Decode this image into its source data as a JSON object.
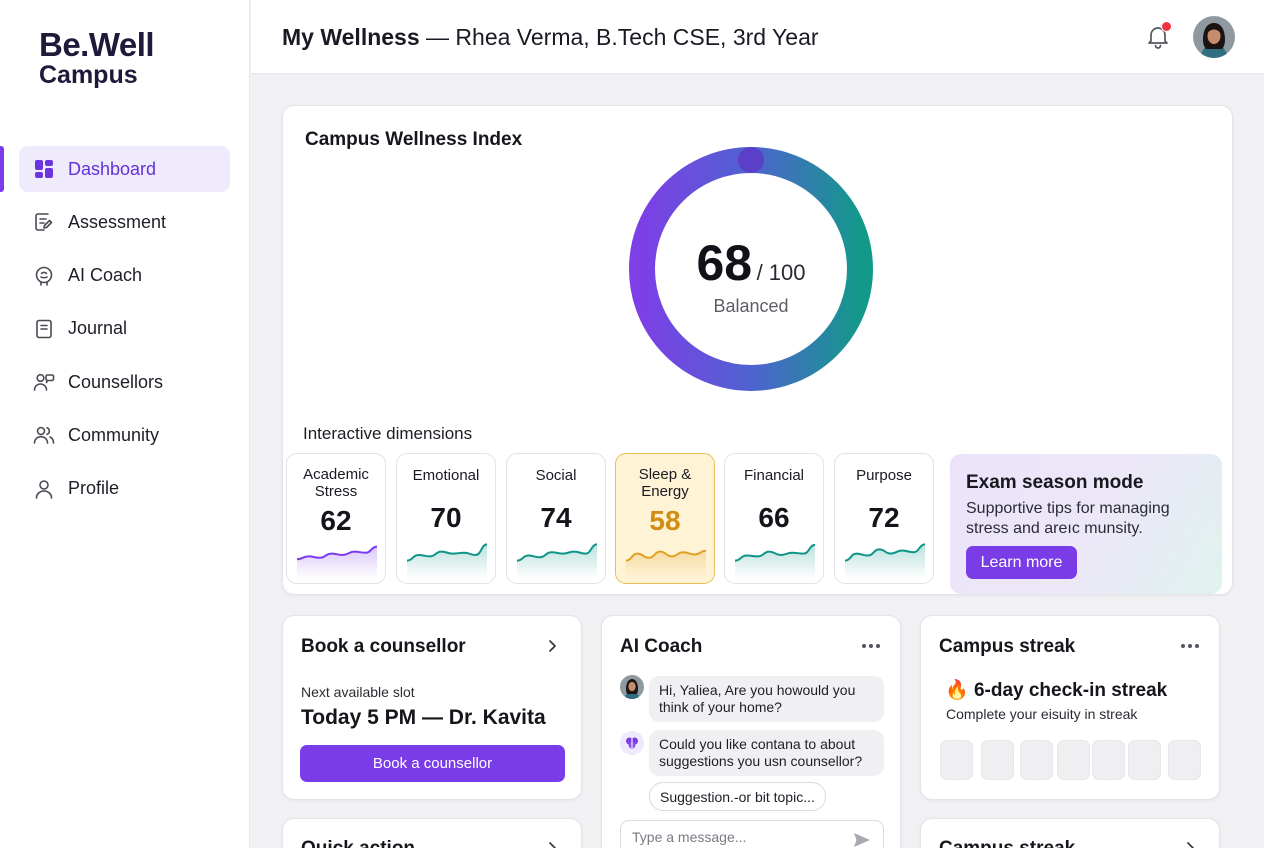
{
  "brand": {
    "line1": "Be.Well",
    "line2": "Campus"
  },
  "sidebar": {
    "items": [
      {
        "label": "Dashboard",
        "icon": "dashboard-icon",
        "active": true
      },
      {
        "label": "Assessment",
        "icon": "assessment-icon"
      },
      {
        "label": "AI Coach",
        "icon": "brain-icon"
      },
      {
        "label": "Journal",
        "icon": "journal-icon"
      },
      {
        "label": "Counsellors",
        "icon": "counsellors-icon"
      },
      {
        "label": "Community",
        "icon": "community-icon"
      },
      {
        "label": "Profile",
        "icon": "profile-icon"
      }
    ]
  },
  "header": {
    "title_bold": "My Wellness",
    "title_rest": " — Rhea Verma, B.Tech CSE, 3rd Year",
    "has_notification": true
  },
  "wellness_index": {
    "title": "Campus Wellness Index",
    "score": "68",
    "max": "/ 100",
    "score_fraction": 0.68,
    "label": "Balanced",
    "dimensions_title": "Interactive dimensions",
    "dimensions": [
      {
        "name": "Academic Stress",
        "value": "62",
        "trend": [
          0.35,
          0.45,
          0.4,
          0.55,
          0.5,
          0.62,
          0.58,
          0.8
        ],
        "color": "#7c3aed"
      },
      {
        "name": "Emotional",
        "value": "70",
        "trend": [
          0.3,
          0.5,
          0.45,
          0.62,
          0.55,
          0.58,
          0.5,
          0.88
        ],
        "color": "#0f9488"
      },
      {
        "name": "Social",
        "value": "74",
        "trend": [
          0.3,
          0.48,
          0.42,
          0.6,
          0.55,
          0.62,
          0.55,
          0.88
        ],
        "color": "#0f9488"
      },
      {
        "name": "Sleep & Energy",
        "value": "58",
        "trend": [
          0.3,
          0.55,
          0.4,
          0.62,
          0.45,
          0.6,
          0.52,
          0.65
        ],
        "color": "#e0a125",
        "highlight": true
      },
      {
        "name": "Financial",
        "value": "66",
        "trend": [
          0.3,
          0.48,
          0.45,
          0.62,
          0.5,
          0.58,
          0.55,
          0.86
        ],
        "color": "#0f9488"
      },
      {
        "name": "Purpose",
        "value": "72",
        "trend": [
          0.3,
          0.55,
          0.48,
          0.7,
          0.55,
          0.66,
          0.6,
          0.88
        ],
        "color": "#0f9488"
      }
    ],
    "exam_mode": {
      "title": "Exam season mode",
      "description": "Supportive tips for managing stress and areıc munsity.",
      "button": "Learn more"
    }
  },
  "book": {
    "title": "Book a counsellor",
    "slot_label": "Next available slot",
    "slot_value": "Today 5 PM — Dr. Kavita",
    "button": "Book a counsellor"
  },
  "coach": {
    "title": "AI Coach",
    "messages": [
      {
        "from": "user",
        "text": "Hi, Yaliea, Are you howould you think of your home?"
      },
      {
        "from": "coach",
        "text": "Could you like contana to about suggestions you usn counsellor?"
      }
    ],
    "chip": "Suggestion.-or bit topic...",
    "input_placeholder": "Type a message..."
  },
  "streak": {
    "title": "Campus streak",
    "emoji": "🔥",
    "headline": "6-day check-in streak",
    "subtitle": "Complete your eisuity in streak",
    "days": 7
  },
  "quick": {
    "title": "Quick action"
  },
  "streak2": {
    "title": "Campus streak"
  },
  "colors": {
    "accent": "#7a3ce6",
    "teal": "#0f9488",
    "amber": "#e0a125",
    "active_bg": "#efeafc"
  }
}
